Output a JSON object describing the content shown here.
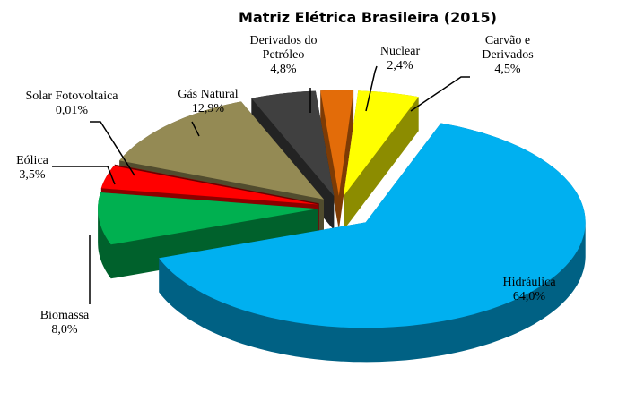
{
  "chart_data": {
    "type": "pie",
    "title": "Matriz Elétrica Brasileira (2015)",
    "categories": [
      "Hidráulica",
      "Biomassa",
      "Eólica",
      "Solar Fotovoltaica",
      "Gás Natural",
      "Derivados do Petróleo",
      "Nuclear",
      "Carvão e Derivados"
    ],
    "values": [
      64.0,
      8.0,
      3.5,
      0.01,
      12.9,
      4.8,
      2.4,
      4.5
    ],
    "value_labels": [
      "64,0%",
      "8,0%",
      "3,5%",
      "0,01%",
      "12,9%",
      "4,8%",
      "2,4%",
      "4,5%"
    ],
    "colors": [
      "#00b0f0",
      "#00b050",
      "#ff0000",
      "#c00000",
      "#948a54",
      "#404040",
      "#e36c09",
      "#ffff00"
    ]
  }
}
